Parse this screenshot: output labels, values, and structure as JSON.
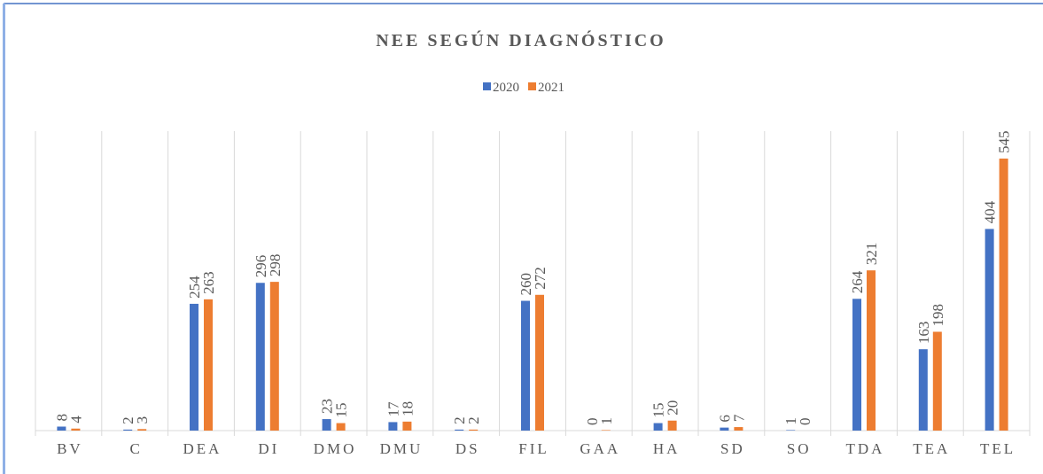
{
  "chart_data": {
    "type": "bar",
    "title": "NEE SEGÚN DIAGNÓSTICO",
    "categories": [
      "BV",
      "C",
      "DEA",
      "DI",
      "DMO",
      "DMU",
      "DS",
      "FIL",
      "GAA",
      "HA",
      "SD",
      "SO",
      "TDA",
      "TEA",
      "TEL"
    ],
    "series": [
      {
        "name": "2020",
        "color": "#4472c4",
        "values": [
          8,
          2,
          254,
          296,
          23,
          17,
          2,
          260,
          0,
          15,
          6,
          1,
          264,
          163,
          404
        ]
      },
      {
        "name": "2021",
        "color": "#ed7d31",
        "values": [
          4,
          3,
          263,
          298,
          15,
          18,
          2,
          272,
          1,
          20,
          7,
          0,
          321,
          198,
          545
        ]
      }
    ],
    "ylim": [
      0,
      600
    ],
    "legend": "top"
  }
}
